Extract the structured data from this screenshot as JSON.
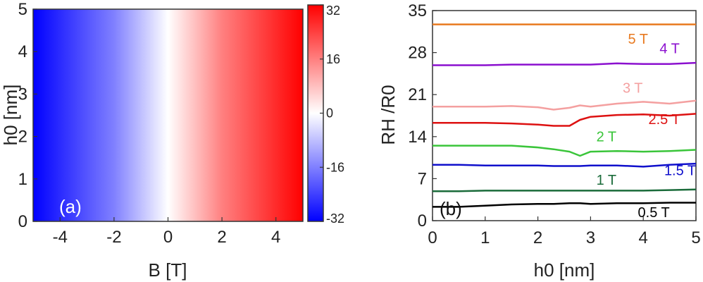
{
  "chart_data": [
    {
      "type": "heatmap",
      "panel_label": "(a)",
      "xlabel": "B [T]",
      "ylabel": "h0 [nm]",
      "xlim": [
        -5,
        5
      ],
      "ylim": [
        0,
        5
      ],
      "x_ticks": [
        "-4",
        "-2",
        "0",
        "2",
        "4"
      ],
      "y_ticks": [
        "0",
        "1",
        "2",
        "3",
        "4",
        "5"
      ],
      "colorbar": {
        "range": [
          -32,
          32
        ],
        "ticks": [
          "32",
          "16",
          "0",
          "-16",
          "-32"
        ],
        "colors": [
          "#0000ff",
          "#ffffff",
          "#ff0000"
        ]
      },
      "gradient_stops": [
        {
          "B": -5,
          "value": -32
        },
        {
          "B": -2,
          "value": -16
        },
        {
          "B": 0,
          "value": 0
        },
        {
          "B": 2,
          "value": 16
        },
        {
          "B": 5,
          "value": 32
        }
      ]
    },
    {
      "type": "line",
      "panel_label": "(b)",
      "xlabel": "h0 [nm]",
      "ylabel": "RH /R0",
      "xlim": [
        0,
        5
      ],
      "ylim": [
        0,
        35
      ],
      "x_ticks": [
        "0",
        "1",
        "2",
        "3",
        "4",
        "5"
      ],
      "y_ticks": [
        "0",
        "7",
        "14",
        "21",
        "28",
        "35"
      ],
      "x": [
        0,
        0.5,
        1.0,
        1.5,
        2.0,
        2.3,
        2.6,
        2.8,
        3.0,
        3.5,
        4.0,
        4.5,
        5.0
      ],
      "series": [
        {
          "name": "0.5 T",
          "color": "#000000",
          "values": [
            2.3,
            2.3,
            2.5,
            2.7,
            2.8,
            2.8,
            2.9,
            2.9,
            2.8,
            2.9,
            2.9,
            3.0,
            3.0
          ],
          "label_at": [
            4.2,
            0.6
          ]
        },
        {
          "name": "1 T",
          "color": "#1a6b3a",
          "values": [
            4.9,
            4.9,
            5.0,
            5.0,
            5.0,
            5.0,
            5.0,
            5.0,
            5.0,
            5.0,
            5.0,
            5.1,
            5.2
          ],
          "label_at": [
            3.3,
            6.0
          ]
        },
        {
          "name": "1.5 T",
          "color": "#1010cc",
          "values": [
            9.3,
            9.3,
            9.2,
            9.2,
            9.2,
            9.1,
            9.1,
            9.1,
            9.2,
            9.2,
            9.0,
            9.3,
            9.5
          ],
          "label_at": [
            4.7,
            7.6
          ]
        },
        {
          "name": "2 T",
          "color": "#3ac53a",
          "values": [
            12.5,
            12.5,
            12.5,
            12.5,
            12.2,
            11.9,
            11.5,
            10.8,
            11.5,
            11.6,
            11.5,
            11.6,
            11.8
          ],
          "label_at": [
            3.3,
            13.2
          ]
        },
        {
          "name": "2.5 T",
          "color": "#dd1111",
          "values": [
            16.3,
            16.3,
            16.3,
            16.2,
            16.0,
            15.8,
            15.8,
            16.8,
            17.3,
            17.6,
            17.7,
            17.5,
            17.8
          ],
          "label_at": [
            4.4,
            16.1
          ]
        },
        {
          "name": "3 T",
          "color": "#f4a0a0",
          "values": [
            19.0,
            19.0,
            19.0,
            19.1,
            18.9,
            18.5,
            18.8,
            19.2,
            19.0,
            19.5,
            19.8,
            19.5,
            20.0
          ],
          "label_at": [
            3.8,
            21.3
          ]
        },
        {
          "name": "4 T",
          "color": "#8b10cf",
          "values": [
            25.9,
            25.9,
            25.9,
            26.0,
            26.0,
            26.0,
            26.0,
            26.0,
            26.0,
            26.2,
            26.1,
            26.1,
            26.3
          ],
          "label_at": [
            4.5,
            27.9
          ]
        },
        {
          "name": "5 T",
          "color": "#e87a20",
          "values": [
            32.7,
            32.7,
            32.7,
            32.7,
            32.7,
            32.7,
            32.7,
            32.7,
            32.7,
            32.7,
            32.7,
            32.7,
            32.7
          ],
          "label_at": [
            3.9,
            29.5
          ]
        }
      ]
    }
  ]
}
